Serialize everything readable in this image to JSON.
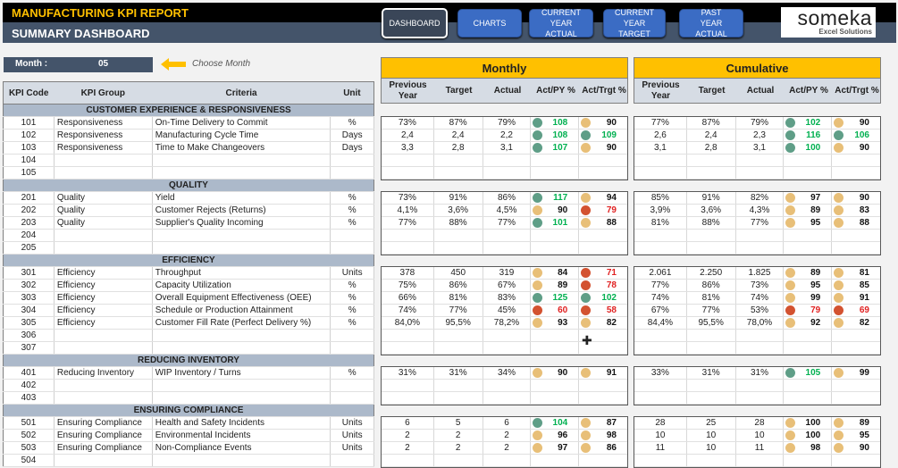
{
  "header": {
    "title": "MANUFACTURING KPI REPORT",
    "subtitle": "SUMMARY DASHBOARD"
  },
  "nav": [
    {
      "label": "DASHBOARD",
      "active": true
    },
    {
      "label": "CHARTS"
    },
    {
      "label": "CURRENT YEAR ACTUAL"
    },
    {
      "label": "CURRENT YEAR TARGET"
    },
    {
      "label": "PAST YEAR ACTUAL"
    }
  ],
  "logo": {
    "name": "someka",
    "tagline": "Excel Solutions"
  },
  "month": {
    "label": "Month :",
    "value": "05",
    "hint": "Choose Month"
  },
  "left_headers": [
    "KPI Code",
    "KPI Group",
    "Criteria",
    "Unit"
  ],
  "panels": {
    "monthly": "Monthly",
    "cumulative": "Cumulative"
  },
  "panel_headers": [
    "Previous Year",
    "Target",
    "Actual",
    "Act/PY %",
    "Act/Trgt %"
  ],
  "colors": {
    "green": "#5f9e87",
    "amber": "#e8bf78",
    "red": "#d35230"
  },
  "sections": [
    {
      "title": "CUSTOMER EXPERIENCE & RESPONSIVENESS",
      "rows": [
        {
          "code": "101",
          "group": "Responsiveness",
          "criteria": "On-Time Delivery to Commit",
          "unit": "%",
          "m": [
            "73%",
            "87%",
            "79%",
            "108",
            "green",
            "90",
            "amber"
          ],
          "c": [
            "77%",
            "87%",
            "79%",
            "102",
            "green",
            "90",
            "amber"
          ]
        },
        {
          "code": "102",
          "group": "Responsiveness",
          "criteria": "Manufacturing Cycle Time",
          "unit": "Days",
          "m": [
            "2,4",
            "2,4",
            "2,2",
            "108",
            "green",
            "109",
            "green"
          ],
          "c": [
            "2,6",
            "2,4",
            "2,3",
            "116",
            "green",
            "106",
            "green"
          ]
        },
        {
          "code": "103",
          "group": "Responsiveness",
          "criteria": "Time to Make Changeovers",
          "unit": "Days",
          "m": [
            "3,3",
            "2,8",
            "3,1",
            "107",
            "green",
            "90",
            "amber"
          ],
          "c": [
            "3,1",
            "2,8",
            "3,1",
            "100",
            "green",
            "90",
            "amber"
          ]
        },
        {
          "code": "104"
        },
        {
          "code": "105"
        }
      ]
    },
    {
      "title": "QUALITY",
      "rows": [
        {
          "code": "201",
          "group": "Quality",
          "criteria": "Yield",
          "unit": "%",
          "m": [
            "73%",
            "91%",
            "86%",
            "117",
            "green",
            "94",
            "amber"
          ],
          "c": [
            "85%",
            "91%",
            "82%",
            "97",
            "amber",
            "90",
            "amber"
          ]
        },
        {
          "code": "202",
          "group": "Quality",
          "criteria": "Customer Rejects (Returns)",
          "unit": "%",
          "m": [
            "4,1%",
            "3,6%",
            "4,5%",
            "90",
            "amber",
            "79",
            "red"
          ],
          "c": [
            "3,9%",
            "3,6%",
            "4,3%",
            "89",
            "amber",
            "83",
            "amber"
          ]
        },
        {
          "code": "203",
          "group": "Quality",
          "criteria": "Supplier's Quality Incoming",
          "unit": "%",
          "m": [
            "77%",
            "88%",
            "77%",
            "101",
            "green",
            "88",
            "amber"
          ],
          "c": [
            "81%",
            "88%",
            "77%",
            "95",
            "amber",
            "88",
            "amber"
          ]
        },
        {
          "code": "204"
        },
        {
          "code": "205"
        }
      ]
    },
    {
      "title": "EFFICIENCY",
      "rows": [
        {
          "code": "301",
          "group": "Efficiency",
          "criteria": "Throughput",
          "unit": "Units",
          "m": [
            "378",
            "450",
            "319",
            "84",
            "amber",
            "71",
            "red"
          ],
          "c": [
            "2.061",
            "2.250",
            "1.825",
            "89",
            "amber",
            "81",
            "amber"
          ]
        },
        {
          "code": "302",
          "group": "Efficiency",
          "criteria": "Capacity Utilization",
          "unit": "%",
          "m": [
            "75%",
            "86%",
            "67%",
            "89",
            "amber",
            "78",
            "red"
          ],
          "c": [
            "77%",
            "86%",
            "73%",
            "95",
            "amber",
            "85",
            "amber"
          ]
        },
        {
          "code": "303",
          "group": "Efficiency",
          "criteria": "Overall Equipment Effectiveness (OEE)",
          "unit": "%",
          "m": [
            "66%",
            "81%",
            "83%",
            "125",
            "green",
            "102",
            "green"
          ],
          "c": [
            "74%",
            "81%",
            "74%",
            "99",
            "amber",
            "91",
            "amber"
          ]
        },
        {
          "code": "304",
          "group": "Efficiency",
          "criteria": "Schedule or Production Attainment",
          "unit": "%",
          "m": [
            "74%",
            "77%",
            "45%",
            "60",
            "red",
            "58",
            "red"
          ],
          "c": [
            "67%",
            "77%",
            "53%",
            "79",
            "red",
            "69",
            "red"
          ]
        },
        {
          "code": "305",
          "group": "Efficiency",
          "criteria": "Customer Fill Rate (Perfect Delivery %)",
          "unit": "%",
          "m": [
            "84,0%",
            "95,5%",
            "78,2%",
            "93",
            "amber",
            "82",
            "amber"
          ],
          "c": [
            "84,4%",
            "95,5%",
            "78,0%",
            "92",
            "amber",
            "82",
            "amber"
          ]
        },
        {
          "code": "306"
        },
        {
          "code": "307"
        }
      ]
    },
    {
      "title": "REDUCING INVENTORY",
      "rows": [
        {
          "code": "401",
          "group": "Reducing Inventory",
          "criteria": "WIP Inventory / Turns",
          "unit": "%",
          "m": [
            "31%",
            "31%",
            "34%",
            "90",
            "amber",
            "91",
            "amber"
          ],
          "c": [
            "33%",
            "31%",
            "31%",
            "105",
            "green",
            "99",
            "amber"
          ]
        },
        {
          "code": "402"
        },
        {
          "code": "403"
        }
      ]
    },
    {
      "title": "ENSURING COMPLIANCE",
      "rows": [
        {
          "code": "501",
          "group": "Ensuring Compliance",
          "criteria": "Health and Safety Incidents",
          "unit": "Units",
          "m": [
            "6",
            "5",
            "6",
            "104",
            "green",
            "87",
            "amber"
          ],
          "c": [
            "28",
            "25",
            "28",
            "100",
            "amber",
            "89",
            "amber"
          ]
        },
        {
          "code": "502",
          "group": "Ensuring Compliance",
          "criteria": "Environmental Incidents",
          "unit": "Units",
          "m": [
            "2",
            "2",
            "2",
            "96",
            "amber",
            "98",
            "amber"
          ],
          "c": [
            "10",
            "10",
            "10",
            "100",
            "amber",
            "95",
            "amber"
          ]
        },
        {
          "code": "503",
          "group": "Ensuring Compliance",
          "criteria": "Non-Compliance Events",
          "unit": "Units",
          "m": [
            "2",
            "2",
            "2",
            "97",
            "amber",
            "86",
            "amber"
          ],
          "c": [
            "11",
            "10",
            "11",
            "98",
            "amber",
            "90",
            "amber"
          ]
        },
        {
          "code": "504"
        }
      ]
    }
  ]
}
